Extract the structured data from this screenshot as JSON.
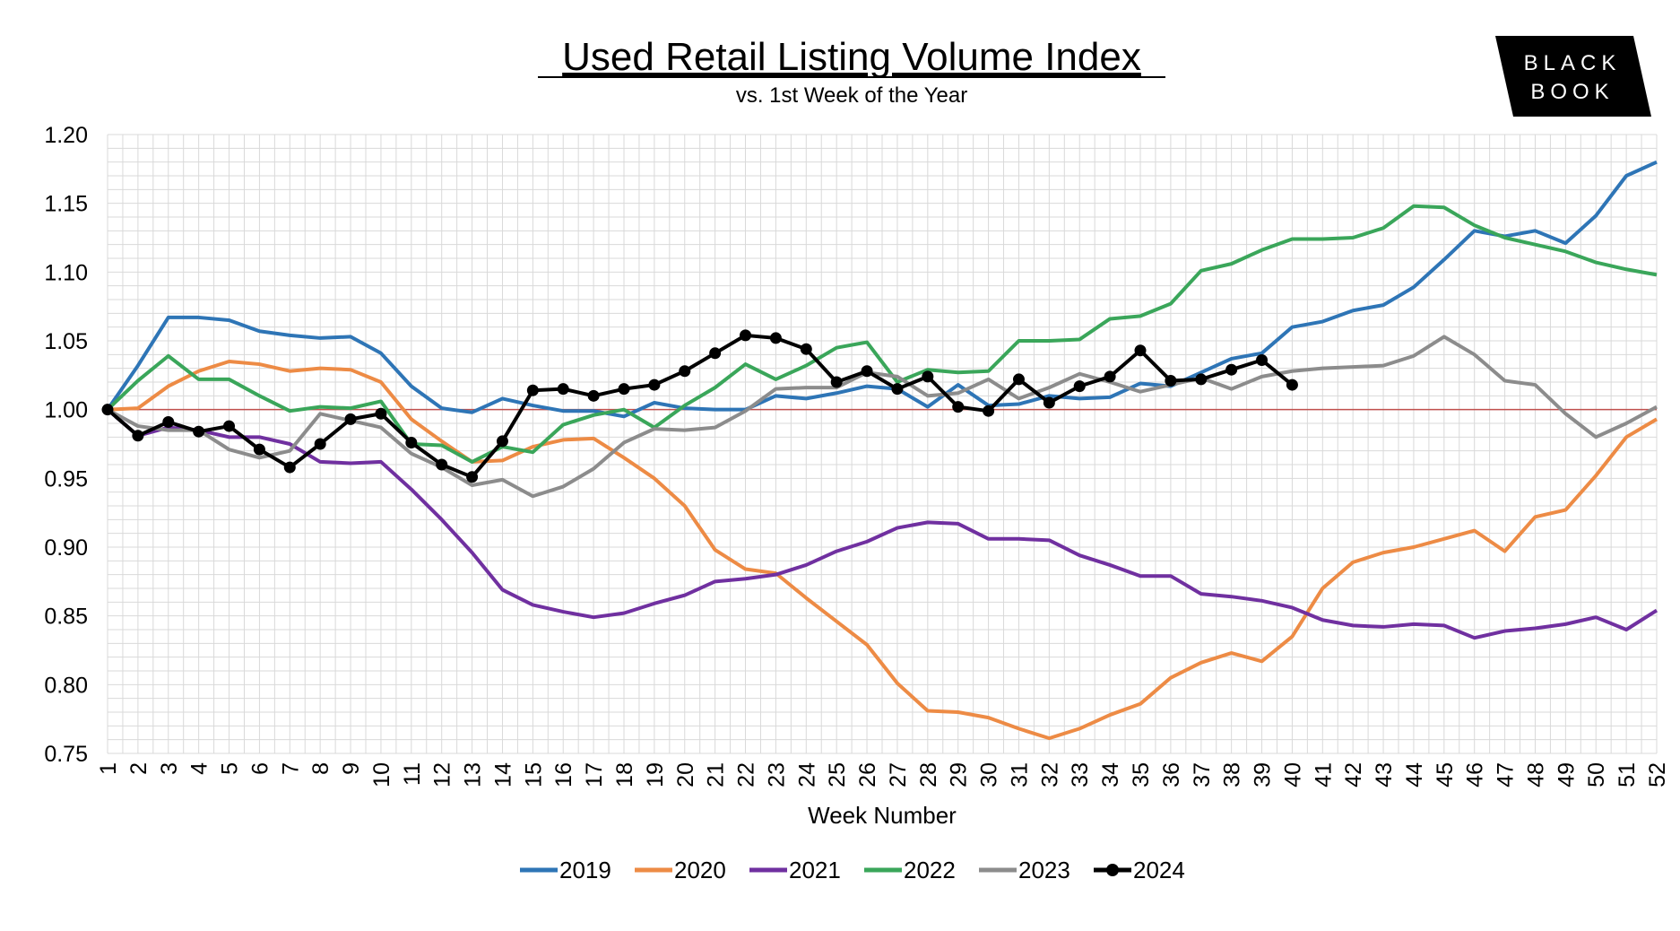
{
  "chart_data": {
    "type": "line",
    "title": "Used Retail Listing Volume Index",
    "subtitle": "vs. 1st Week of the Year",
    "xlabel": "Week Number",
    "ylabel": "",
    "ylim": [
      0.75,
      1.2
    ],
    "yticks": [
      "1.20",
      "1.15",
      "1.10",
      "1.05",
      "1.00",
      "0.95",
      "0.90",
      "0.85",
      "0.80",
      "0.75"
    ],
    "xlim": [
      1,
      52
    ],
    "grid": true,
    "reference_line": {
      "value": 1.0,
      "color": "#c0504d"
    },
    "legend_position": "bottom",
    "logo_text": [
      "BLACK",
      "BOOK"
    ],
    "series": [
      {
        "name": "2019",
        "color": "#2e75b6",
        "markers": false,
        "values": [
          1.0,
          1.032,
          1.067,
          1.067,
          1.065,
          1.057,
          1.054,
          1.052,
          1.053,
          1.041,
          1.017,
          1.001,
          0.998,
          1.008,
          1.003,
          0.999,
          0.999,
          0.995,
          1.005,
          1.001,
          1.0,
          1.0,
          1.01,
          1.008,
          1.012,
          1.017,
          1.015,
          1.002,
          1.018,
          1.003,
          1.004,
          1.01,
          1.008,
          1.009,
          1.019,
          1.017,
          1.027,
          1.037,
          1.041,
          1.06,
          1.064,
          1.072,
          1.076,
          1.089,
          1.109,
          1.13,
          1.126,
          1.13,
          1.121,
          1.141,
          1.17,
          1.18
        ]
      },
      {
        "name": "2020",
        "color": "#ed8b45",
        "markers": false,
        "values": [
          1.0,
          1.001,
          1.017,
          1.028,
          1.035,
          1.033,
          1.028,
          1.03,
          1.029,
          1.02,
          0.993,
          0.977,
          0.962,
          0.963,
          0.973,
          0.978,
          0.979,
          0.965,
          0.95,
          0.93,
          0.898,
          0.884,
          0.881,
          0.863,
          0.846,
          0.829,
          0.801,
          0.781,
          0.78,
          0.776,
          0.768,
          0.761,
          0.768,
          0.778,
          0.786,
          0.805,
          0.816,
          0.823,
          0.817,
          0.835,
          0.87,
          0.889,
          0.896,
          0.9,
          0.906,
          0.912,
          0.897,
          0.922,
          0.927,
          0.952,
          0.98,
          0.993
        ]
      },
      {
        "name": "2021",
        "color": "#7030a0",
        "markers": false,
        "values": [
          1.0,
          0.981,
          0.987,
          0.985,
          0.98,
          0.98,
          0.975,
          0.962,
          0.961,
          0.962,
          0.942,
          0.92,
          0.896,
          0.869,
          0.858,
          0.853,
          0.849,
          0.852,
          0.859,
          0.865,
          0.875,
          0.877,
          0.88,
          0.887,
          0.897,
          0.904,
          0.914,
          0.918,
          0.917,
          0.906,
          0.906,
          0.905,
          0.894,
          0.887,
          0.879,
          0.879,
          0.866,
          0.864,
          0.861,
          0.856,
          0.847,
          0.843,
          0.842,
          0.844,
          0.843,
          0.834,
          0.839,
          0.841,
          0.844,
          0.849,
          0.84,
          0.854
        ]
      },
      {
        "name": "2022",
        "color": "#3aa65a",
        "markers": false,
        "values": [
          1.0,
          1.021,
          1.039,
          1.022,
          1.022,
          1.01,
          0.999,
          1.002,
          1.001,
          1.006,
          0.975,
          0.974,
          0.962,
          0.973,
          0.969,
          0.989,
          0.996,
          1.0,
          0.987,
          1.003,
          1.016,
          1.033,
          1.022,
          1.032,
          1.045,
          1.049,
          1.02,
          1.029,
          1.027,
          1.028,
          1.05,
          1.05,
          1.051,
          1.066,
          1.068,
          1.077,
          1.101,
          1.106,
          1.116,
          1.124,
          1.124,
          1.125,
          1.132,
          1.148,
          1.147,
          1.134,
          1.125,
          1.12,
          1.115,
          1.107,
          1.102,
          1.098
        ]
      },
      {
        "name": "2023",
        "color": "#8c8c8c",
        "markers": false,
        "values": [
          1.0,
          0.988,
          0.985,
          0.985,
          0.971,
          0.965,
          0.97,
          0.997,
          0.992,
          0.987,
          0.968,
          0.958,
          0.945,
          0.949,
          0.937,
          0.944,
          0.957,
          0.976,
          0.986,
          0.985,
          0.987,
          0.999,
          1.015,
          1.016,
          1.016,
          1.027,
          1.024,
          1.01,
          1.012,
          1.022,
          1.008,
          1.016,
          1.026,
          1.02,
          1.013,
          1.018,
          1.023,
          1.015,
          1.024,
          1.028,
          1.03,
          1.031,
          1.032,
          1.039,
          1.053,
          1.04,
          1.021,
          1.018,
          0.997,
          0.98,
          0.99,
          1.002
        ]
      },
      {
        "name": "2024",
        "color": "#000000",
        "markers": true,
        "values": [
          1.0,
          0.981,
          0.991,
          0.984,
          0.988,
          0.971,
          0.958,
          0.975,
          0.993,
          0.997,
          0.976,
          0.96,
          0.951,
          0.977,
          1.014,
          1.015,
          1.01,
          1.015,
          1.018,
          1.028,
          1.041,
          1.054,
          1.052,
          1.044,
          1.02,
          1.028,
          1.015,
          1.024,
          1.002,
          0.999,
          1.022,
          1.005,
          1.017,
          1.024,
          1.043,
          1.021,
          1.022,
          1.029,
          1.036,
          1.018
        ]
      }
    ]
  }
}
